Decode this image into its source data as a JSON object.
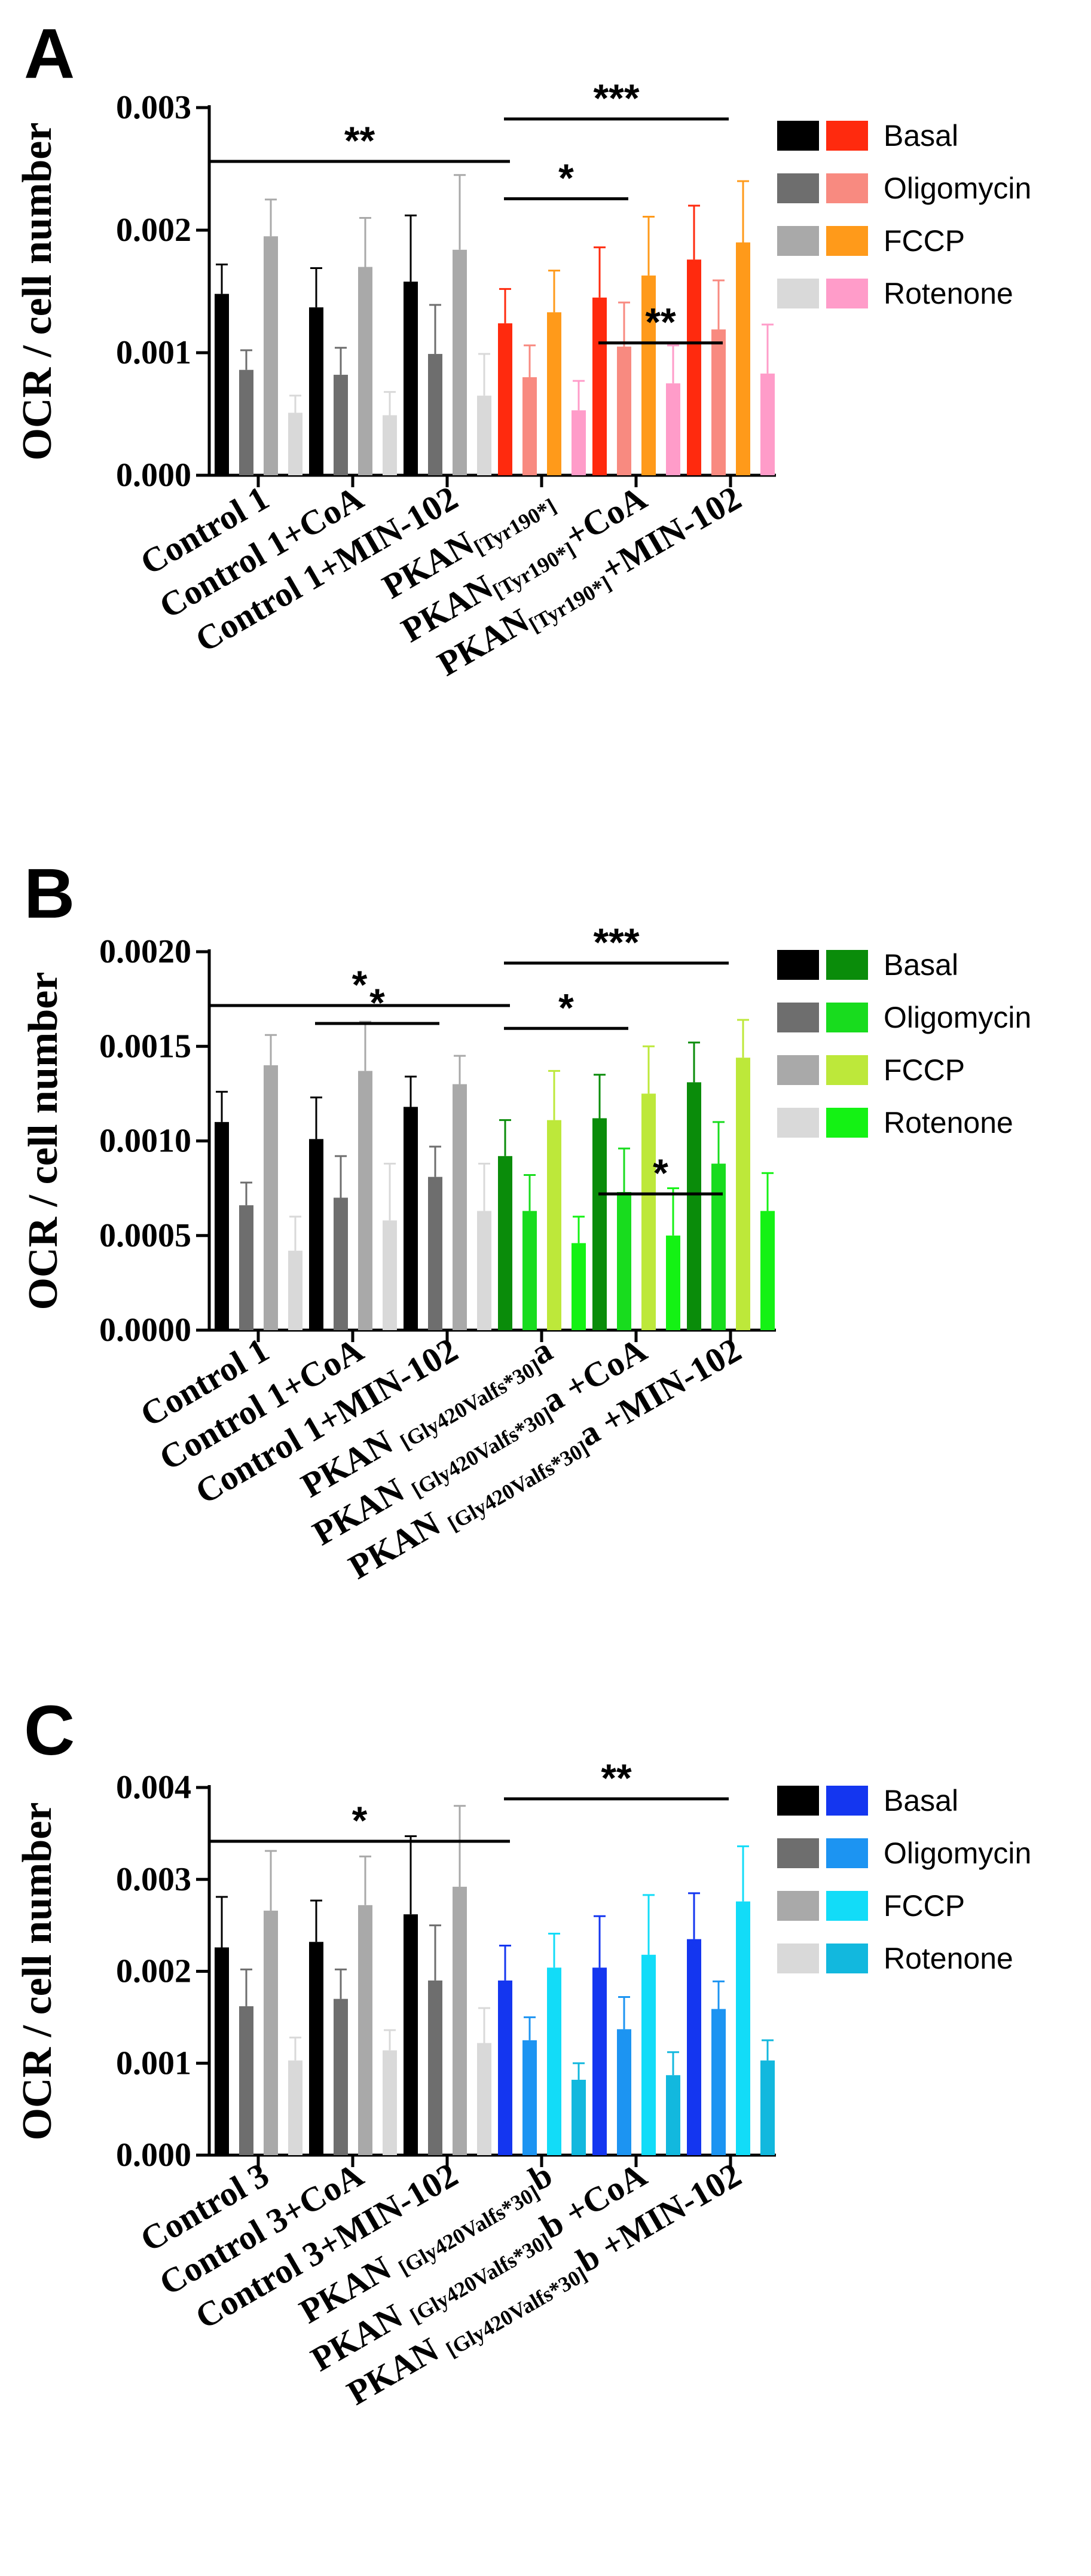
{
  "chart_data": [
    {
      "type": "bar",
      "panel": "A",
      "ylabel": "OCR / cell number",
      "ylim": [
        0,
        0.003
      ],
      "yticks": [
        "0.000",
        "0.001",
        "0.002",
        "0.003"
      ],
      "categories": [
        {
          "main": "Control 1",
          "sub": "",
          "tail": ""
        },
        {
          "main": "Control 1+CoA",
          "sub": "",
          "tail": ""
        },
        {
          "main": "Control 1+MIN-102",
          "sub": "",
          "tail": ""
        },
        {
          "main": "PKAN",
          "sub": "[Tyr190*]",
          "tail": ""
        },
        {
          "main": "PKAN",
          "sub": "[Tyr190*]",
          "tail": "+CoA"
        },
        {
          "main": "PKAN",
          "sub": "[Tyr190*]",
          "tail": "+MIN-102"
        }
      ],
      "series": [
        {
          "name": "Basal",
          "values": [
            0.00148,
            0.00137,
            0.00158,
            0.00124,
            0.00145,
            0.00176
          ],
          "errors": [
            0.00024,
            0.00032,
            0.00054,
            0.00028,
            0.00041,
            0.00044
          ]
        },
        {
          "name": "Oligomycin",
          "values": [
            0.00086,
            0.00082,
            0.00099,
            0.0008,
            0.00105,
            0.00119
          ],
          "errors": [
            0.00016,
            0.00022,
            0.0004,
            0.00026,
            0.00036,
            0.0004
          ]
        },
        {
          "name": "FCCP",
          "values": [
            0.00195,
            0.0017,
            0.00184,
            0.00133,
            0.00163,
            0.0019
          ],
          "errors": [
            0.0003,
            0.0004,
            0.00061,
            0.00034,
            0.00048,
            0.0005
          ]
        },
        {
          "name": "Rotenone",
          "values": [
            0.00051,
            0.00049,
            0.00065,
            0.00053,
            0.00075,
            0.00083
          ],
          "errors": [
            0.00014,
            0.00019,
            0.00034,
            0.00024,
            0.00031,
            0.0004
          ]
        }
      ],
      "control_colors": [
        "#000000",
        "#6e6e6e",
        "#a9a9a9",
        "#d9d9d9"
      ],
      "patient_colors": [
        "#ff2a0e",
        "#f88a80",
        "#ff9a1a",
        "#ff9cc9"
      ],
      "significance": [
        {
          "from": 0,
          "to": 3,
          "label": "**"
        },
        {
          "from": 3,
          "to": 5,
          "label": "***"
        },
        {
          "from": 3,
          "to": 4,
          "label": "*"
        },
        {
          "from": 4,
          "to": 5,
          "label": "**"
        }
      ]
    },
    {
      "type": "bar",
      "panel": "B",
      "ylabel": "OCR / cell number",
      "ylim": [
        0,
        0.002
      ],
      "yticks": [
        "0.0000",
        "0.0005",
        "0.0010",
        "0.0015",
        "0.0020"
      ],
      "categories": [
        {
          "main": "Control 1",
          "sub": "",
          "tail": ""
        },
        {
          "main": "Control 1+CoA",
          "sub": "",
          "tail": ""
        },
        {
          "main": "Control 1+MIN-102",
          "sub": "",
          "tail": ""
        },
        {
          "main": "PKAN ",
          "sub": "[Gly420Valfs*30]",
          "tail": "a"
        },
        {
          "main": "PKAN ",
          "sub": "[Gly420Valfs*30]",
          "tail": "a +CoA"
        },
        {
          "main": "PKAN ",
          "sub": "[Gly420Valfs*30]",
          "tail": "a +MIN-102"
        }
      ],
      "series": [
        {
          "name": "Basal",
          "values": [
            0.0011,
            0.00101,
            0.00118,
            0.00092,
            0.00112,
            0.00131
          ],
          "errors": [
            0.00016,
            0.00022,
            0.00016,
            0.00019,
            0.00023,
            0.00021
          ]
        },
        {
          "name": "Oligomycin",
          "values": [
            0.00066,
            0.0007,
            0.00081,
            0.00063,
            0.00073,
            0.00088
          ],
          "errors": [
            0.00012,
            0.00022,
            0.00016,
            0.00019,
            0.00023,
            0.00022
          ]
        },
        {
          "name": "FCCP",
          "values": [
            0.0014,
            0.00137,
            0.0013,
            0.00111,
            0.00125,
            0.00144
          ],
          "errors": [
            0.00016,
            0.00026,
            0.00015,
            0.00026,
            0.00025,
            0.0002
          ]
        },
        {
          "name": "Rotenone",
          "values": [
            0.00042,
            0.00058,
            0.00063,
            0.00046,
            0.0005,
            0.00063
          ],
          "errors": [
            0.00018,
            0.0003,
            0.00025,
            0.00014,
            0.00025,
            0.0002
          ]
        }
      ],
      "control_colors": [
        "#000000",
        "#6e6e6e",
        "#a9a9a9",
        "#d9d9d9"
      ],
      "patient_colors": [
        "#0a8c0a",
        "#18dc1e",
        "#bde83a",
        "#14f214"
      ],
      "significance": [
        {
          "from": 0,
          "to": 3,
          "label": "*"
        },
        {
          "from": 3,
          "to": 5,
          "label": "***"
        },
        {
          "from": 1,
          "to": 2,
          "label": "*"
        },
        {
          "from": 3,
          "to": 4,
          "label": "*"
        },
        {
          "from": 4,
          "to": 5,
          "label": "*"
        }
      ]
    },
    {
      "type": "bar",
      "panel": "C",
      "ylabel": "OCR / cell number",
      "ylim": [
        0,
        0.004
      ],
      "yticks": [
        "0.000",
        "0.001",
        "0.002",
        "0.003",
        "0.004"
      ],
      "categories": [
        {
          "main": "Control 3",
          "sub": "",
          "tail": ""
        },
        {
          "main": "Control 3+CoA",
          "sub": "",
          "tail": ""
        },
        {
          "main": "Control 3+MIN-102",
          "sub": "",
          "tail": ""
        },
        {
          "main": "PKAN ",
          "sub": "[Gly420Valfs*30]",
          "tail": "b"
        },
        {
          "main": "PKAN ",
          "sub": "[Gly420Valfs*30]",
          "tail": "b +CoA"
        },
        {
          "main": "PKAN ",
          "sub": "[Gly420Valfs*30]",
          "tail": "b +MIN-102"
        }
      ],
      "series": [
        {
          "name": "Basal",
          "values": [
            0.00226,
            0.00232,
            0.00262,
            0.0019,
            0.00204,
            0.00235
          ],
          "errors": [
            0.00055,
            0.00045,
            0.00085,
            0.00038,
            0.00056,
            0.0005
          ]
        },
        {
          "name": "Oligomycin",
          "values": [
            0.00162,
            0.0017,
            0.0019,
            0.00125,
            0.00137,
            0.00159
          ],
          "errors": [
            0.0004,
            0.00032,
            0.0006,
            0.00025,
            0.00035,
            0.0003
          ]
        },
        {
          "name": "FCCP",
          "values": [
            0.00266,
            0.00272,
            0.00292,
            0.00204,
            0.00218,
            0.00276
          ],
          "errors": [
            0.00065,
            0.00053,
            0.00088,
            0.00037,
            0.00065,
            0.0006
          ]
        },
        {
          "name": "Rotenone",
          "values": [
            0.00103,
            0.00114,
            0.00122,
            0.00082,
            0.00087,
            0.00103
          ],
          "errors": [
            0.00025,
            0.00022,
            0.00038,
            0.00018,
            0.00025,
            0.00022
          ]
        }
      ],
      "control_colors": [
        "#000000",
        "#6e6e6e",
        "#a9a9a9",
        "#d9d9d9"
      ],
      "patient_colors": [
        "#1436f0",
        "#1c94f2",
        "#12dcf8",
        "#12b8de"
      ],
      "significance": [
        {
          "from": 0,
          "to": 3,
          "label": "*"
        },
        {
          "from": 3,
          "to": 5,
          "label": "**"
        }
      ]
    }
  ]
}
